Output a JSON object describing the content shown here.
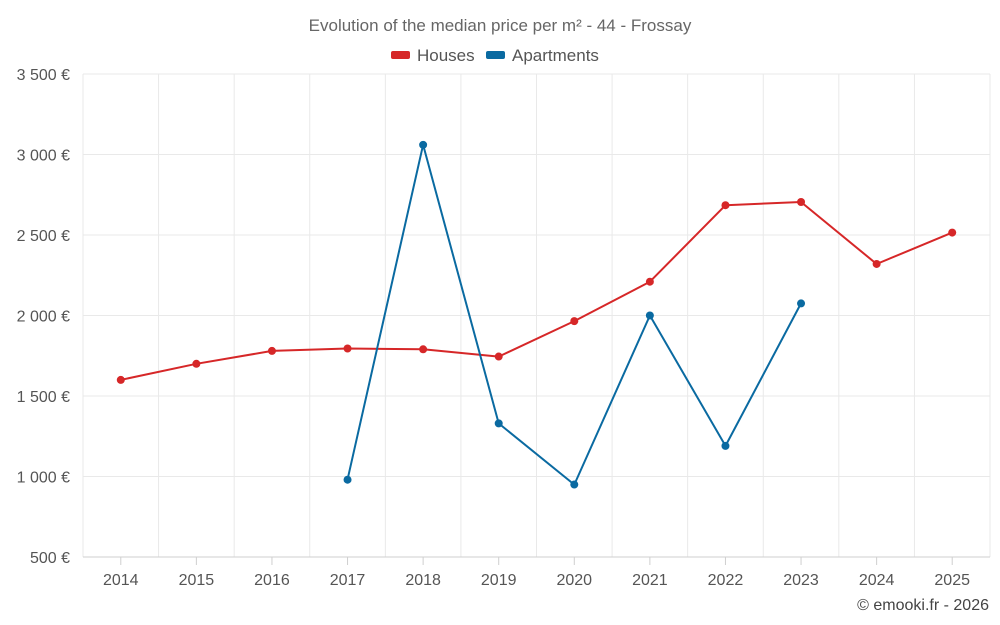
{
  "chart_data": {
    "type": "line",
    "title": "Evolution of the median price per m² - 44 - Frossay",
    "x": [
      2014,
      2015,
      2016,
      2017,
      2018,
      2019,
      2020,
      2021,
      2022,
      2023,
      2024,
      2025
    ],
    "x_tick_labels": [
      "2014",
      "2015",
      "2016",
      "2017",
      "2018",
      "2019",
      "2020",
      "2021",
      "2022",
      "2023",
      "2024",
      "2025"
    ],
    "y_tick_labels": [
      "500 €",
      "1 000 €",
      "1 500 €",
      "2 000 €",
      "2 500 €",
      "3 000 €",
      "3 500 €"
    ],
    "y_ticks": [
      500,
      1000,
      1500,
      2000,
      2500,
      3000,
      3500
    ],
    "ylim": [
      500,
      3500
    ],
    "grid": true,
    "legend_position": "top-center",
    "series": [
      {
        "name": "Houses",
        "color": "#d62728",
        "values": [
          1600,
          1700,
          1780,
          1795,
          1790,
          1745,
          1965,
          2210,
          2685,
          2705,
          2320,
          2515
        ]
      },
      {
        "name": "Apartments",
        "color": "#0a6aa1",
        "values": [
          null,
          null,
          null,
          980,
          3060,
          1330,
          950,
          2000,
          1190,
          2075,
          null,
          null
        ]
      }
    ],
    "credit": "© emooki.fr - 2026"
  }
}
